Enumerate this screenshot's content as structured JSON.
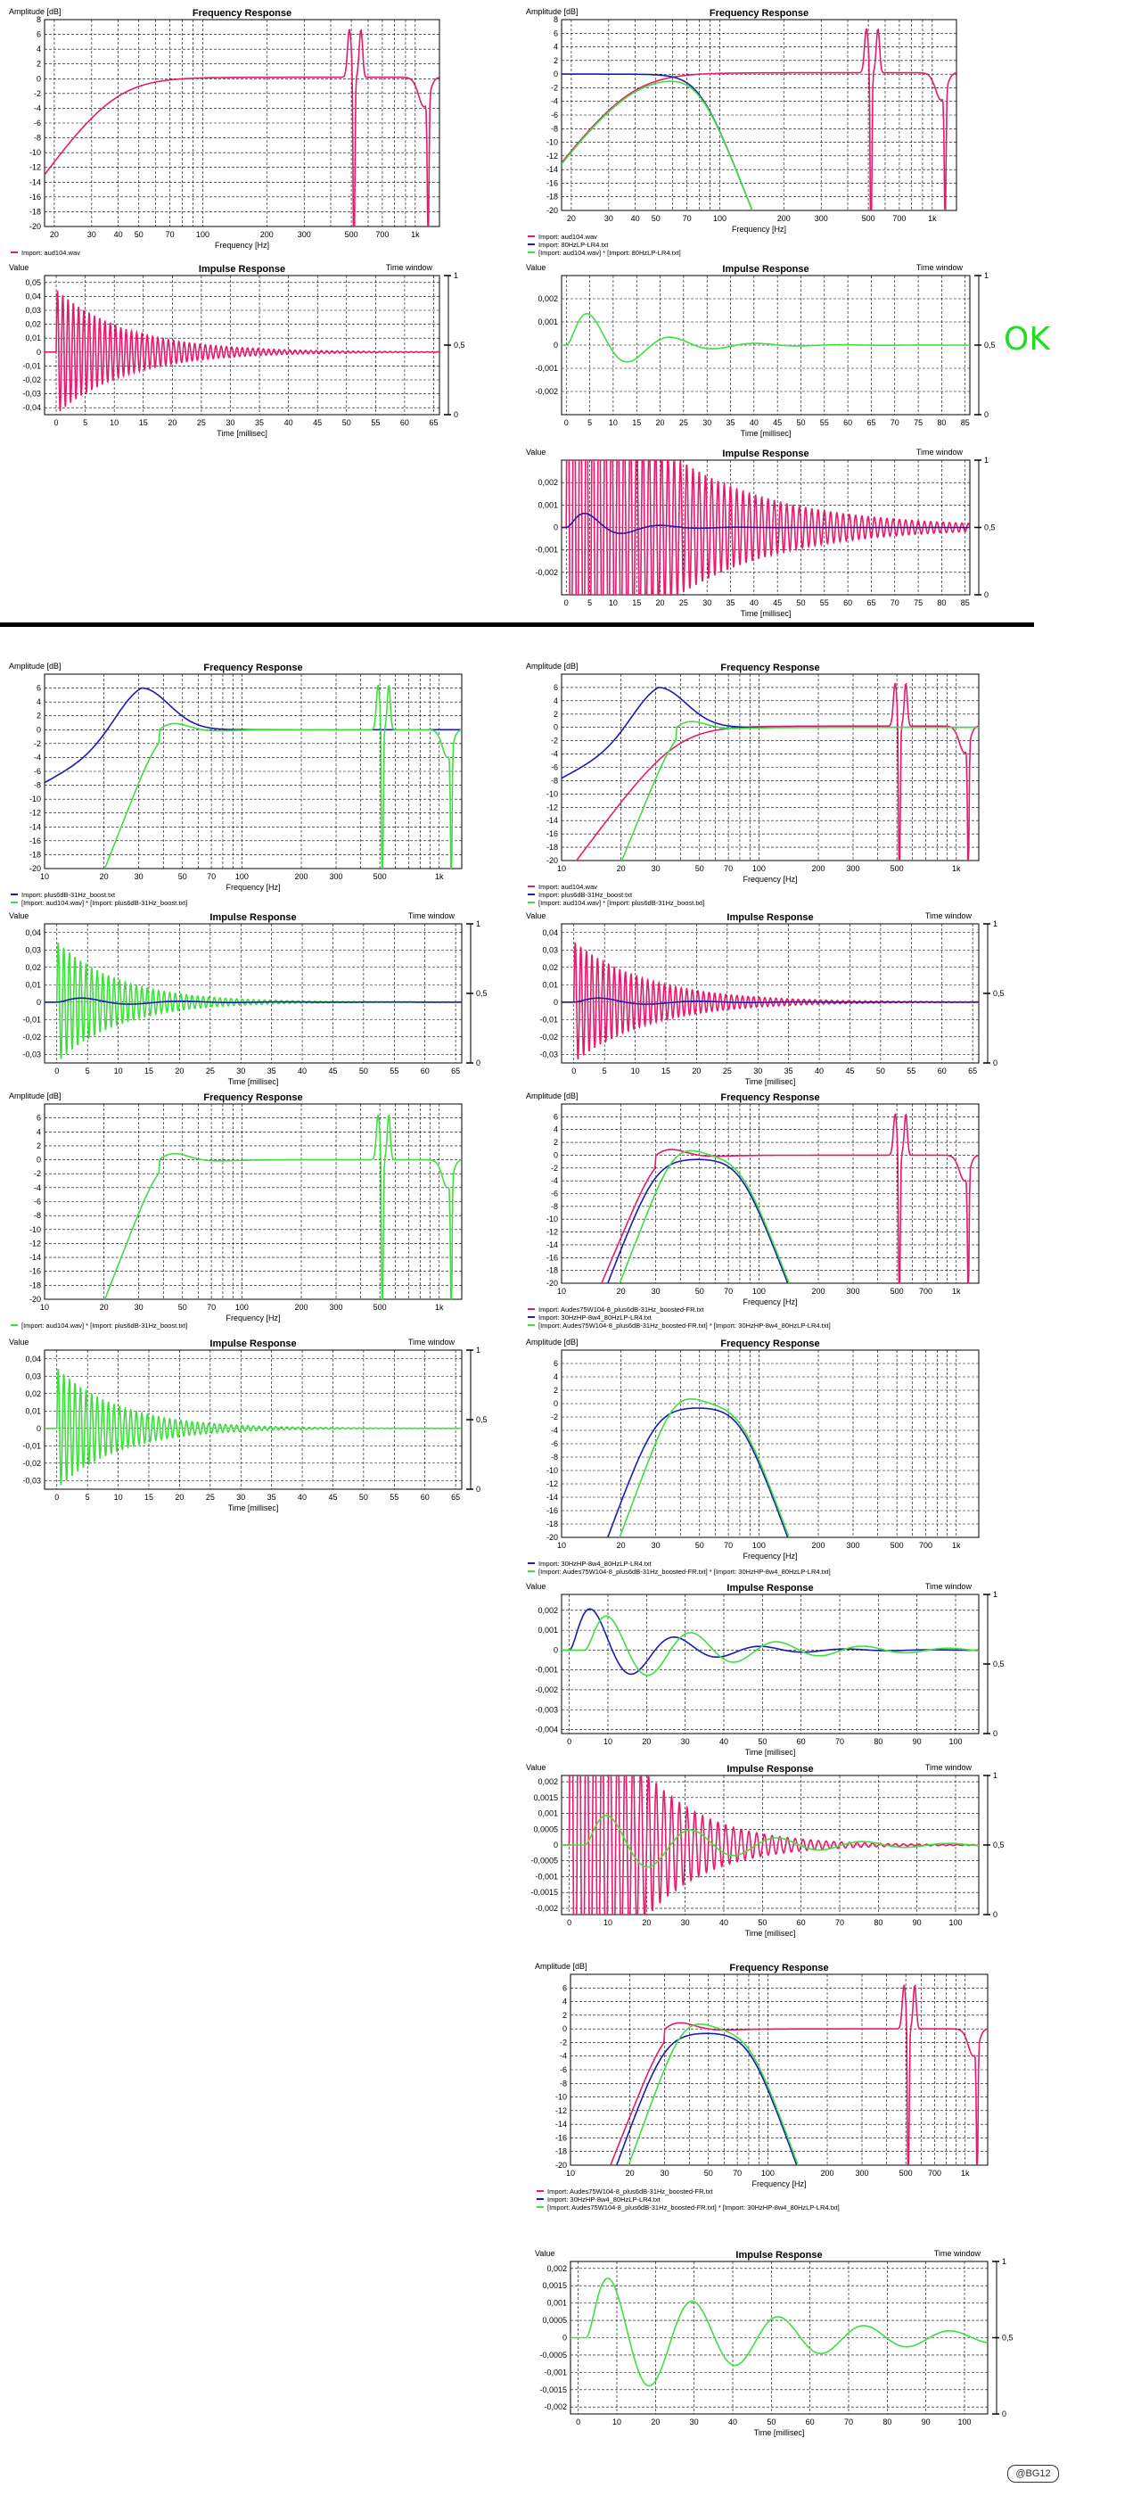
{
  "labels": {
    "fr_title": "Frequency Response",
    "ir_title": "Impulse Response",
    "amp_label": "Amplitude [dB]",
    "freq_label": "Frequency [Hz]",
    "value_label": "Value",
    "time_label": "Time [millisec]",
    "time_window": "Time window",
    "ok": "OK",
    "signature": "@BG12"
  },
  "colors": {
    "magenta": "#e8196e",
    "blue": "#1a1ab4",
    "green": "#3ee03e"
  },
  "chart_data": [
    {
      "id": "fr1",
      "type": "line",
      "title": "Frequency Response",
      "xscale": "log",
      "xlim": [
        18,
        1300
      ],
      "ylim": [
        -20,
        8
      ],
      "xticks": [
        20,
        30,
        40,
        50,
        70,
        100,
        200,
        300,
        500,
        700,
        1000
      ],
      "xticklabels": [
        "20",
        "30",
        "40",
        "50",
        "70",
        "100",
        "200",
        "300",
        "500",
        "700",
        "1k"
      ],
      "yticks": [
        8,
        6,
        4,
        2,
        0,
        -2,
        -4,
        -6,
        -8,
        -10,
        -12,
        -14,
        -16,
        -18,
        -20
      ],
      "series": [
        {
          "name": "Import: aud104.wav",
          "color": "#e8196e",
          "curve": "hp",
          "fc": 38,
          "resonance": true
        }
      ],
      "legend": [
        "Import: aud104.wav"
      ]
    },
    {
      "id": "fr2",
      "type": "line",
      "title": "Frequency Response",
      "xscale": "log",
      "xlim": [
        18,
        1300
      ],
      "ylim": [
        -20,
        8
      ],
      "xticks": [
        20,
        30,
        40,
        50,
        70,
        100,
        200,
        300,
        500,
        700,
        1000
      ],
      "xticklabels": [
        "20",
        "30",
        "40",
        "50",
        "70",
        "100",
        "200",
        "300",
        "500",
        "700",
        "1k"
      ],
      "yticks": [
        8,
        6,
        4,
        2,
        0,
        -2,
        -4,
        -6,
        -8,
        -10,
        -12,
        -14,
        -16,
        -18,
        -20
      ],
      "series": [
        {
          "name": "Import: aud104.wav",
          "color": "#e8196e",
          "curve": "hp",
          "fc": 38,
          "resonance": true
        },
        {
          "name": "Import: 80HzLP-LR4.txt",
          "color": "#1a1ab4",
          "curve": "lp",
          "fc": 80
        },
        {
          "name": "[Import: aud104.wav] * [Import: 80HzLP-LR4.txt]",
          "color": "#3ee03e",
          "curve": "bp",
          "fc1": 38,
          "fc2": 80
        }
      ],
      "legend": [
        "Import: aud104.wav",
        "Import: 80HzLP-LR4.txt",
        "[Import: aud104.wav] * [Import: 80HzLP-LR4.txt]"
      ]
    },
    {
      "id": "ir1",
      "type": "line",
      "title": "Impulse Response",
      "xlim": [
        -2,
        66
      ],
      "ylim": [
        -0.045,
        0.055
      ],
      "xticks": [
        0,
        5,
        10,
        15,
        20,
        25,
        30,
        35,
        40,
        45,
        50,
        55,
        60,
        65
      ],
      "yticks": [
        0.05,
        0.04,
        0.03,
        0.02,
        0.01,
        0,
        -0.01,
        -0.02,
        -0.03,
        -0.04
      ],
      "yticklabels": [
        "0,05",
        "0,04",
        "0,03",
        "0,02",
        "0,01",
        "0",
        "-0,01",
        "-0,02",
        "-0,03",
        "-0,04"
      ],
      "series": [
        {
          "color": "#e8196e",
          "curve": "ring",
          "amp": 0.045,
          "f": 1.1,
          "decay": 12
        }
      ]
    },
    {
      "id": "ir2",
      "type": "line",
      "title": "Impulse Response",
      "xlim": [
        -1,
        86
      ],
      "ylim": [
        -0.003,
        0.003
      ],
      "xticks": [
        0,
        5,
        10,
        15,
        20,
        25,
        30,
        35,
        40,
        45,
        50,
        55,
        60,
        65,
        70,
        75,
        80,
        85
      ],
      "yticks": [
        0.002,
        0.001,
        0,
        -0.001,
        -0.002
      ],
      "yticklabels": [
        "0,002",
        "0,001",
        "0",
        "-0,001",
        "-0,002"
      ],
      "series": [
        {
          "color": "#3ee03e",
          "curve": "wavelet",
          "amp": 0.0022,
          "f": 0.055,
          "decay": 12
        }
      ]
    },
    {
      "id": "ir3",
      "type": "line",
      "title": "Impulse Response",
      "xlim": [
        -1,
        86
      ],
      "ylim": [
        -0.003,
        0.003
      ],
      "xticks": [
        0,
        5,
        10,
        15,
        20,
        25,
        30,
        35,
        40,
        45,
        50,
        55,
        60,
        65,
        70,
        75,
        80,
        85
      ],
      "yticks": [
        0.002,
        0.001,
        0,
        -0.001,
        -0.002
      ],
      "yticklabels": [
        "0,002",
        "0,001",
        "0",
        "-0,001",
        "-0,002"
      ],
      "series": [
        {
          "color": "#e8196e",
          "curve": "ring",
          "amp": 0.009,
          "f": 0.75,
          "decay": 22
        },
        {
          "color": "#1a1ab4",
          "curve": "wavelet",
          "amp": 0.0012,
          "f": 0.06,
          "decay": 8
        }
      ]
    },
    {
      "id": "fr3",
      "type": "line",
      "title": "Frequency Response",
      "xscale": "log",
      "xlim": [
        10,
        1300
      ],
      "ylim": [
        -20,
        8
      ],
      "xticks": [
        10,
        20,
        30,
        50,
        70,
        100,
        200,
        300,
        500,
        1000
      ],
      "xticklabels": [
        "10",
        "20",
        "30",
        "50",
        "70",
        "100",
        "200",
        "300",
        "500",
        "1k"
      ],
      "yticks": [
        6,
        4,
        2,
        0,
        -2,
        -4,
        -6,
        -8,
        -10,
        -12,
        -14,
        -16,
        -18,
        -20
      ],
      "series": [
        {
          "name": "Import: plus6dB-31Hz_boost.txt",
          "color": "#1a1ab4",
          "curve": "boost",
          "fc": 31
        },
        {
          "name": "[Import: aud104.wav] * [Import: plus6dB-31Hz_boost.txt]",
          "color": "#3ee03e",
          "curve": "hpboost",
          "fc": 38,
          "resonance": true
        }
      ],
      "legend": [
        "Import: plus6dB-31Hz_boost.txt",
        "[Import: aud104.wav] * [Import: plus6dB-31Hz_boost.txt]"
      ]
    },
    {
      "id": "fr4",
      "type": "line",
      "title": "Frequency Response",
      "xscale": "log",
      "xlim": [
        10,
        1300
      ],
      "ylim": [
        -20,
        8
      ],
      "xticks": [
        10,
        20,
        30,
        50,
        70,
        100,
        200,
        300,
        500,
        1000
      ],
      "xticklabels": [
        "10",
        "20",
        "30",
        "50",
        "70",
        "100",
        "200",
        "300",
        "500",
        "1k"
      ],
      "yticks": [
        6,
        4,
        2,
        0,
        -2,
        -4,
        -6,
        -8,
        -10,
        -12,
        -14,
        -16,
        -18,
        -20
      ],
      "series": [
        {
          "name": "Import: aud104.wav",
          "color": "#e8196e",
          "curve": "hp",
          "fc": 38,
          "resonance": true
        },
        {
          "name": "Import: plus6dB-31Hz_boost.txt",
          "color": "#1a1ab4",
          "curve": "boost",
          "fc": 31
        },
        {
          "name": "[Import: aud104.wav] * [Import: plus6dB-31Hz_boost.txt]",
          "color": "#3ee03e",
          "curve": "hpboost",
          "fc": 38
        }
      ],
      "legend": [
        "Import: aud104.wav",
        "Import: plus6dB-31Hz_boost.txt",
        "[Import: aud104.wav] * [Import: plus6dB-31Hz_boost.txt]"
      ]
    },
    {
      "id": "ir4",
      "type": "line",
      "title": "Impulse Response",
      "xlim": [
        -2,
        66
      ],
      "ylim": [
        -0.035,
        0.045
      ],
      "xticks": [
        0,
        5,
        10,
        15,
        20,
        25,
        30,
        35,
        40,
        45,
        50,
        55,
        60,
        65
      ],
      "yticks": [
        0.04,
        0.03,
        0.02,
        0.01,
        0,
        -0.01,
        -0.02,
        -0.03
      ],
      "yticklabels": [
        "0,04",
        "0,03",
        "0,02",
        "0,01",
        "0",
        "-0,01",
        "-0,02",
        "-0,03"
      ],
      "series": [
        {
          "color": "#3ee03e",
          "curve": "ring",
          "amp": 0.035,
          "f": 1.1,
          "decay": 10
        },
        {
          "color": "#1a1ab4",
          "curve": "wavelet",
          "amp": 0.004,
          "f": 0.06,
          "decay": 10
        }
      ]
    },
    {
      "id": "ir5",
      "type": "line",
      "title": "Impulse Response",
      "xlim": [
        -2,
        66
      ],
      "ylim": [
        -0.035,
        0.045
      ],
      "xticks": [
        0,
        5,
        10,
        15,
        20,
        25,
        30,
        35,
        40,
        45,
        50,
        55,
        60,
        65
      ],
      "yticks": [
        0.04,
        0.03,
        0.02,
        0.01,
        0,
        -0.01,
        -0.02,
        -0.03
      ],
      "yticklabels": [
        "0,04",
        "0,03",
        "0,02",
        "0,01",
        "0",
        "-0,01",
        "-0,02",
        "-0,03"
      ],
      "series": [
        {
          "color": "#e8196e",
          "curve": "ring",
          "amp": 0.035,
          "f": 1.1,
          "decay": 12
        },
        {
          "color": "#1a1ab4",
          "curve": "wavelet",
          "amp": 0.004,
          "f": 0.06,
          "decay": 10
        }
      ]
    },
    {
      "id": "fr5",
      "type": "line",
      "title": "Frequency Response",
      "xscale": "log",
      "xlim": [
        10,
        1300
      ],
      "ylim": [
        -20,
        8
      ],
      "xticks": [
        10,
        20,
        30,
        50,
        70,
        100,
        200,
        300,
        500,
        1000
      ],
      "xticklabels": [
        "10",
        "20",
        "30",
        "50",
        "70",
        "100",
        "200",
        "300",
        "500",
        "1k"
      ],
      "yticks": [
        6,
        4,
        2,
        0,
        -2,
        -4,
        -6,
        -8,
        -10,
        -12,
        -14,
        -16,
        -18,
        -20
      ],
      "series": [
        {
          "name": "[Import: aud104.wav] * [Import: plus6dB-31Hz_boost.txt]",
          "color": "#3ee03e",
          "curve": "hpboost",
          "fc": 38,
          "resonance": true
        }
      ],
      "legend": [
        "[Import: aud104.wav] * [Import: plus6dB-31Hz_boost.txt]"
      ]
    },
    {
      "id": "fr6",
      "type": "line",
      "title": "Frequency Response",
      "xscale": "log",
      "xlim": [
        10,
        1300
      ],
      "ylim": [
        -20,
        8
      ],
      "xticks": [
        10,
        20,
        30,
        50,
        70,
        100,
        200,
        300,
        500,
        700,
        1000
      ],
      "xticklabels": [
        "10",
        "20",
        "30",
        "50",
        "70",
        "100",
        "200",
        "300",
        "500",
        "700",
        "1k"
      ],
      "yticks": [
        6,
        4,
        2,
        0,
        -2,
        -4,
        -6,
        -8,
        -10,
        -12,
        -14,
        -16,
        -18,
        -20
      ],
      "series": [
        {
          "name": "Import: Audes75W104-8_plus6dB-31Hz_boosted-FR.txt",
          "color": "#e8196e",
          "curve": "hpboost",
          "fc": 30,
          "resonance": true
        },
        {
          "name": "Import: 30HzHP-8w4_80HzLP-LR4.txt",
          "color": "#1a1ab4",
          "curve": "bpw",
          "fc1": 30,
          "fc2": 80
        },
        {
          "name": "[Import: Audes75W104-8_plus6dB-31Hz_boosted-FR.txt] * [Import: 30HzHP-8w4_80HzLP-LR4.txt]",
          "color": "#3ee03e",
          "curve": "bpn",
          "fc1": 35,
          "fc2": 80
        }
      ],
      "legend": [
        "Import: Audes75W104-8_plus6dB-31Hz_boosted-FR.txt",
        "Import: 30HzHP-8w4_80HzLP-LR4.txt",
        "[Import: Audes75W104-8_plus6dB-31Hz_boosted-FR.txt] * [Import: 30HzHP-8w4_80HzLP-LR4.txt]"
      ]
    },
    {
      "id": "ir6",
      "type": "line",
      "title": "Impulse Response",
      "xlim": [
        -2,
        66
      ],
      "ylim": [
        -0.035,
        0.045
      ],
      "xticks": [
        0,
        5,
        10,
        15,
        20,
        25,
        30,
        35,
        40,
        45,
        50,
        55,
        60,
        65
      ],
      "yticks": [
        0.04,
        0.03,
        0.02,
        0.01,
        0,
        -0.01,
        -0.02,
        -0.03
      ],
      "yticklabels": [
        "0,04",
        "0,03",
        "0,02",
        "0,01",
        "0",
        "-0,01",
        "-0,02",
        "-0,03"
      ],
      "series": [
        {
          "color": "#3ee03e",
          "curve": "ring",
          "amp": 0.035,
          "f": 1.1,
          "decay": 10
        }
      ]
    },
    {
      "id": "fr7",
      "type": "line",
      "title": "Frequency Response",
      "xscale": "log",
      "xlim": [
        10,
        1300
      ],
      "ylim": [
        -20,
        8
      ],
      "xticks": [
        10,
        20,
        30,
        50,
        70,
        100,
        200,
        300,
        500,
        700,
        1000
      ],
      "xticklabels": [
        "10",
        "20",
        "30",
        "50",
        "70",
        "100",
        "200",
        "300",
        "500",
        "700",
        "1k"
      ],
      "yticks": [
        6,
        4,
        2,
        0,
        -2,
        -4,
        -6,
        -8,
        -10,
        -12,
        -14,
        -16,
        -18,
        -20
      ],
      "series": [
        {
          "name": "Import: 30HzHP-8w4_80HzLP-LR4.txt",
          "color": "#1a1ab4",
          "curve": "bpw",
          "fc1": 30,
          "fc2": 80
        },
        {
          "name": "[Import: Audes75W104-8_plus6dB-31Hz_boosted-FR.txt] * [Import: 30HzHP-8w4_80HzLP-LR4.txt]",
          "color": "#3ee03e",
          "curve": "bpn",
          "fc1": 35,
          "fc2": 80
        }
      ],
      "legend": [
        "Import: 30HzHP-8w4_80HzLP-LR4.txt",
        "[Import: Audes75W104-8_plus6dB-31Hz_boosted-FR.txt] * [Import: 30HzHP-8w4_80HzLP-LR4.txt]"
      ]
    },
    {
      "id": "ir7",
      "type": "line",
      "title": "Impulse Response",
      "xlim": [
        -2,
        106
      ],
      "ylim": [
        -0.0042,
        0.0028
      ],
      "xticks": [
        0,
        10,
        20,
        30,
        40,
        50,
        60,
        70,
        80,
        90,
        100
      ],
      "yticks": [
        0.002,
        0.001,
        0,
        -0.001,
        -0.002,
        -0.003,
        -0.004
      ],
      "yticklabels": [
        "0,002",
        "0,001",
        "0",
        "-0,001",
        "-0,002",
        "-0,003",
        "-0,004"
      ],
      "series": [
        {
          "color": "#1a1ab4",
          "curve": "wavelet",
          "amp": 0.003,
          "f": 0.045,
          "decay": 18
        },
        {
          "color": "#3ee03e",
          "curve": "wavelet",
          "amp": 0.0022,
          "f": 0.045,
          "decay": 30,
          "shift": 4
        }
      ]
    },
    {
      "id": "ir8",
      "type": "line",
      "title": "Impulse Response",
      "xlim": [
        -2,
        106
      ],
      "ylim": [
        -0.0022,
        0.0022
      ],
      "xticks": [
        0,
        10,
        20,
        30,
        40,
        50,
        60,
        70,
        80,
        90,
        100
      ],
      "yticks": [
        0.002,
        0.0015,
        0.001,
        0.0005,
        0,
        -0.0005,
        -0.001,
        -0.0015,
        -0.002
      ],
      "yticklabels": [
        "0,002",
        "0,0015",
        "0,001",
        "0,0005",
        "0",
        "-0,0005",
        "-0,001",
        "-0,0015",
        "-0,002"
      ],
      "series": [
        {
          "color": "#e8196e",
          "curve": "ring",
          "amp": 0.008,
          "f": 0.5,
          "decay": 16
        },
        {
          "color": "#3ee03e",
          "curve": "wavelet",
          "amp": 0.0012,
          "f": 0.045,
          "decay": 30,
          "shift": 4
        }
      ]
    },
    {
      "id": "fr8",
      "type": "line",
      "title": "Frequency Response",
      "xscale": "log",
      "xlim": [
        10,
        1300
      ],
      "ylim": [
        -20,
        8
      ],
      "xticks": [
        10,
        20,
        30,
        50,
        70,
        100,
        200,
        300,
        500,
        700,
        1000
      ],
      "xticklabels": [
        "10",
        "20",
        "30",
        "50",
        "70",
        "100",
        "200",
        "300",
        "500",
        "700",
        "1k"
      ],
      "yticks": [
        6,
        4,
        2,
        0,
        -2,
        -4,
        -6,
        -8,
        -10,
        -12,
        -14,
        -16,
        -18,
        -20
      ],
      "series": [
        {
          "name": "Import: Audes75W104-8_plus6dB-31Hz_boosted-FR.txt",
          "color": "#e8196e",
          "curve": "hpboost",
          "fc": 30,
          "resonance": true
        },
        {
          "name": "Import: 30HzHP-8w4_80HzLP-LR4.txt",
          "color": "#1a1ab4",
          "curve": "bpw",
          "fc1": 30,
          "fc2": 80
        },
        {
          "name": "[Import: Audes75W104-8_plus6dB-31Hz_boosted-FR.txt] * [Import: 30HzHP-8w4_80HzLP-LR4.txt]",
          "color": "#3ee03e",
          "curve": "bpn",
          "fc1": 35,
          "fc2": 80
        }
      ],
      "legend": [
        "Import: Audes75W104-8_plus6dB-31Hz_boosted-FR.txt",
        "Import: 30HzHP-8w4_80HzLP-LR4.txt",
        "[Import: Audes75W104-8_plus6dB-31Hz_boosted-FR.txt] * [Import: 30HzHP-8w4_80HzLP-LR4.txt]"
      ]
    },
    {
      "id": "ir9",
      "type": "line",
      "title": "Impulse Response",
      "xlim": [
        -2,
        106
      ],
      "ylim": [
        -0.0022,
        0.0022
      ],
      "xticks": [
        0,
        10,
        20,
        30,
        40,
        50,
        60,
        70,
        80,
        90,
        100
      ],
      "yticks": [
        0.002,
        0.0015,
        0.001,
        0.0005,
        0,
        -0.0005,
        -0.001,
        -0.0015,
        -0.002
      ],
      "yticklabels": [
        "0,002",
        "0,0015",
        "0,001",
        "0,0005",
        "0",
        "-0,0005",
        "-0,001",
        "-0,0015",
        "-0,002"
      ],
      "series": [
        {
          "color": "#3ee03e",
          "curve": "wavelet",
          "amp": 0.0021,
          "f": 0.045,
          "decay": 40,
          "shift": 2
        }
      ]
    }
  ]
}
